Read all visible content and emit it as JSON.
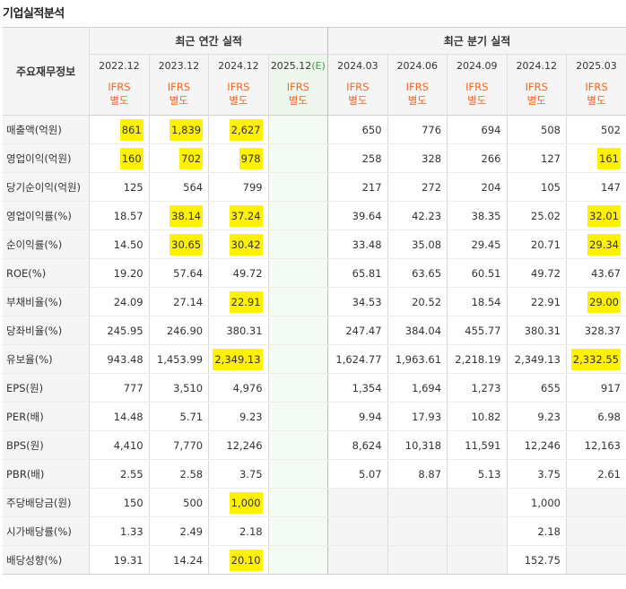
{
  "title": "기업실적분석",
  "header": {
    "row_label": "주요재무정보",
    "annual_group": "최근 연간 실적",
    "quarter_group": "최근 분기 실적",
    "annual_periods": [
      "2022.12",
      "2023.12",
      "2024.12",
      "2025.12"
    ],
    "estimate_mark": "(E)",
    "quarter_periods": [
      "2024.03",
      "2024.06",
      "2024.09",
      "2024.12",
      "2025.03"
    ],
    "basis_line1": "IFRS",
    "basis_line2": "별도"
  },
  "rows": [
    {
      "label": "매출액(억원)",
      "annual": [
        "861",
        "1,839",
        "2,627",
        ""
      ],
      "quarter": [
        "650",
        "776",
        "694",
        "508",
        "502"
      ]
    },
    {
      "label": "영업이익(억원)",
      "annual": [
        "160",
        "702",
        "978",
        ""
      ],
      "quarter": [
        "258",
        "328",
        "266",
        "127",
        "161"
      ]
    },
    {
      "label": "당기순이익(억원)",
      "annual": [
        "125",
        "564",
        "799",
        ""
      ],
      "quarter": [
        "217",
        "272",
        "204",
        "105",
        "147"
      ]
    },
    {
      "label": "영업이익률(%)",
      "annual": [
        "18.57",
        "38.14",
        "37.24",
        ""
      ],
      "quarter": [
        "39.64",
        "42.23",
        "38.35",
        "25.02",
        "32.01"
      ]
    },
    {
      "label": "순이익률(%)",
      "annual": [
        "14.50",
        "30.65",
        "30.42",
        ""
      ],
      "quarter": [
        "33.48",
        "35.08",
        "29.45",
        "20.71",
        "29.34"
      ]
    },
    {
      "label": "ROE(%)",
      "annual": [
        "19.20",
        "57.64",
        "49.72",
        ""
      ],
      "quarter": [
        "65.81",
        "63.65",
        "60.51",
        "49.72",
        "43.67"
      ]
    },
    {
      "label": "부채비율(%)",
      "annual": [
        "24.09",
        "27.14",
        "22.91",
        ""
      ],
      "quarter": [
        "34.53",
        "20.52",
        "18.54",
        "22.91",
        "29.00"
      ]
    },
    {
      "label": "당좌비율(%)",
      "annual": [
        "245.95",
        "246.90",
        "380.31",
        ""
      ],
      "quarter": [
        "247.47",
        "384.04",
        "455.77",
        "380.31",
        "328.37"
      ]
    },
    {
      "label": "유보율(%)",
      "annual": [
        "943.48",
        "1,453.99",
        "2,349.13",
        ""
      ],
      "quarter": [
        "1,624.77",
        "1,963.61",
        "2,218.19",
        "2,349.13",
        "2,332.55"
      ]
    },
    {
      "label": "EPS(원)",
      "annual": [
        "777",
        "3,510",
        "4,976",
        ""
      ],
      "quarter": [
        "1,354",
        "1,694",
        "1,273",
        "655",
        "917"
      ]
    },
    {
      "label": "PER(배)",
      "annual": [
        "14.48",
        "5.71",
        "9.23",
        ""
      ],
      "quarter": [
        "9.94",
        "17.93",
        "10.82",
        "9.23",
        "6.98"
      ]
    },
    {
      "label": "BPS(원)",
      "annual": [
        "4,410",
        "7,770",
        "12,246",
        ""
      ],
      "quarter": [
        "8,624",
        "10,318",
        "11,591",
        "12,246",
        "12,163"
      ]
    },
    {
      "label": "PBR(배)",
      "annual": [
        "2.55",
        "2.58",
        "3.75",
        ""
      ],
      "quarter": [
        "5.07",
        "8.87",
        "5.13",
        "3.75",
        "2.61"
      ]
    },
    {
      "label": "주당배당금(원)",
      "annual": [
        "150",
        "500",
        "1,000",
        ""
      ],
      "quarter": [
        "",
        "",
        "",
        "1,000",
        ""
      ]
    },
    {
      "label": "시가배당률(%)",
      "annual": [
        "1.33",
        "2.49",
        "2.18",
        ""
      ],
      "quarter": [
        "",
        "",
        "",
        "2.18",
        ""
      ]
    },
    {
      "label": "배당성향(%)",
      "annual": [
        "19.31",
        "14.24",
        "20.10",
        ""
      ],
      "quarter": [
        "",
        "",
        "",
        "152.75",
        ""
      ]
    }
  ],
  "colors": {
    "highlight": "#fff200",
    "ifrs_text": "#f26522",
    "estimate_text": "#3a9a3a",
    "header_bg": "#f5f5f5",
    "estimate_bg": "#f4faf4"
  }
}
